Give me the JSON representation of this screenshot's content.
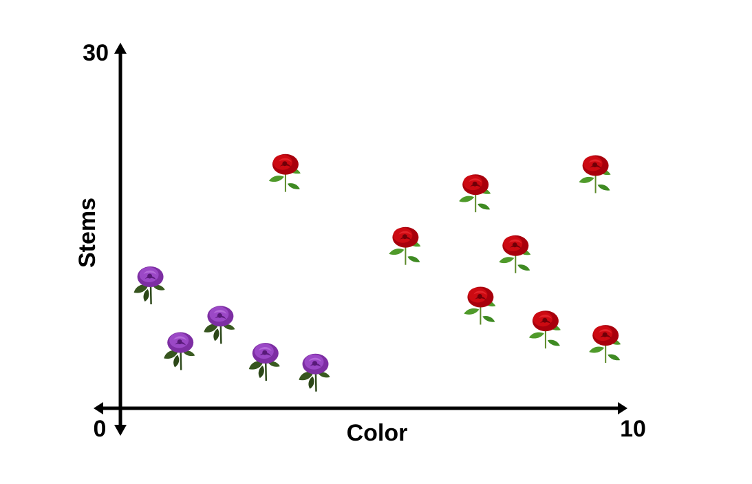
{
  "chart_data": {
    "type": "scatter",
    "title": "",
    "xlabel": "Color",
    "ylabel": "Stems",
    "xlim": [
      0,
      10
    ],
    "ylim": [
      0,
      30
    ],
    "x_tick_labels": [
      "0",
      "10"
    ],
    "y_tick_labels": [
      "30"
    ],
    "grid": false,
    "series": [
      {
        "marker": "purple-rose-icon",
        "color": "#8e3fb5",
        "points": [
          {
            "x": 0.6,
            "y": 11.0
          },
          {
            "x": 1.2,
            "y": 5.5
          },
          {
            "x": 2.0,
            "y": 7.7
          },
          {
            "x": 2.9,
            "y": 4.6
          },
          {
            "x": 3.9,
            "y": 3.7
          }
        ]
      },
      {
        "marker": "red-rose-icon",
        "color": "#c8000f",
        "points": [
          {
            "x": 3.3,
            "y": 20.4
          },
          {
            "x": 5.7,
            "y": 14.3
          },
          {
            "x": 7.1,
            "y": 18.7
          },
          {
            "x": 7.2,
            "y": 9.3
          },
          {
            "x": 7.9,
            "y": 13.6
          },
          {
            "x": 8.5,
            "y": 7.3
          },
          {
            "x": 9.5,
            "y": 20.3
          },
          {
            "x": 9.7,
            "y": 6.1
          }
        ]
      }
    ]
  }
}
